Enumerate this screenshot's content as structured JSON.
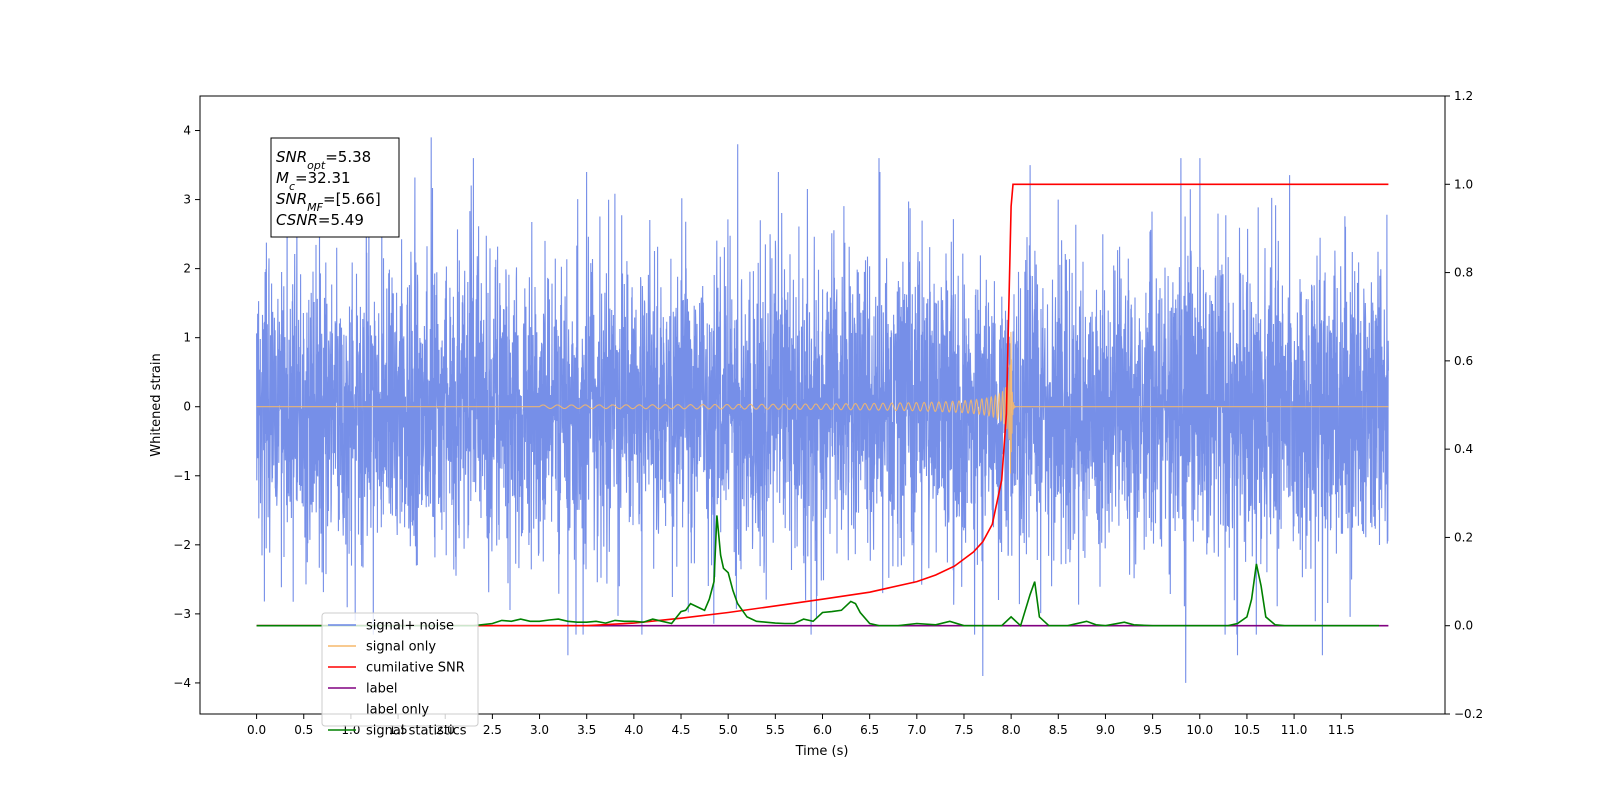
{
  "chart_data": {
    "type": "line",
    "x_axis": {
      "label": "Time (s)",
      "ticks": [
        "0.0",
        "0.5",
        "1.0",
        "1.5",
        "2.0",
        "2.5",
        "3.0",
        "3.5",
        "4.0",
        "4.5",
        "5.0",
        "5.5",
        "6.0",
        "6.5",
        "7.0",
        "7.5",
        "8.0",
        "8.5",
        "9.0",
        "9.5",
        "10.0",
        "10.5",
        "11.0",
        "11.5"
      ],
      "range": [
        -0.6,
        12.6
      ]
    },
    "y_left": {
      "label": "Whitened strain",
      "ticks": [
        -4,
        -3,
        -2,
        -1,
        0,
        1,
        2,
        3,
        4
      ],
      "tick_labels": [
        "−4",
        "−3",
        "−2",
        "−1",
        "0",
        "1",
        "2",
        "3",
        "4"
      ],
      "range": [
        -4.45,
        4.5
      ]
    },
    "y_right": {
      "label": "",
      "ticks": [
        -0.2,
        0.0,
        0.2,
        0.4,
        0.6,
        0.8,
        1.0,
        1.2
      ],
      "tick_labels": [
        "−0.2",
        "0.0",
        "0.2",
        "0.4",
        "0.6",
        "0.8",
        "1.0",
        "1.2"
      ],
      "range": [
        -0.2,
        1.2
      ]
    },
    "annotation": {
      "lines": [
        {
          "base": "SNR",
          "sub": "opt",
          "value": "=5.38"
        },
        {
          "base": "M",
          "sub": "c",
          "value": "=32.31"
        },
        {
          "base": "SNR",
          "sub": "MF",
          "value": "=[5.66]"
        },
        {
          "base": "CSNR",
          "sub": "",
          "value": "=5.49"
        }
      ]
    },
    "legend": {
      "placement": "lower-left",
      "entries": [
        "signal+ noise",
        "signal only",
        "cumilative SNR",
        "label",
        "label only",
        "signal statistics"
      ]
    },
    "colors": {
      "noise": "#6a86e6",
      "signal": "#f5b86c",
      "csnr": "#ff0000",
      "label": "#800080",
      "signal_statistics": "#008000"
    },
    "series": [
      {
        "name": "signal+ noise",
        "axis": "left",
        "kind": "noise",
        "x_range": [
          0.0,
          12.0
        ],
        "typical_amplitude": 2.5,
        "notable_spikes": [
          {
            "x": 1.85,
            "y": 3.9
          },
          {
            "x": 2.3,
            "y": 3.6
          },
          {
            "x": 5.1,
            "y": 3.8
          },
          {
            "x": 6.6,
            "y": 3.6
          },
          {
            "x": 8.2,
            "y": 3.5
          },
          {
            "x": 9.8,
            "y": 3.6
          },
          {
            "x": 10.0,
            "y": 3.6
          },
          {
            "x": 11.3,
            "y": 4.1
          },
          {
            "x": 3.3,
            "y": -3.6
          },
          {
            "x": 7.7,
            "y": -3.9
          },
          {
            "x": 9.85,
            "y": -4.0
          },
          {
            "x": 10.4,
            "y": -3.6
          },
          {
            "x": 11.3,
            "y": -3.6
          }
        ]
      },
      {
        "name": "signal only",
        "axis": "left",
        "kind": "chirp",
        "start": 3.0,
        "merger": 8.0,
        "peak_amplitude": 1.25,
        "end": 12.0
      },
      {
        "name": "cumilative SNR",
        "axis": "right",
        "x": [
          0.0,
          3.5,
          4.0,
          4.5,
          5.0,
          5.5,
          6.0,
          6.5,
          7.0,
          7.2,
          7.4,
          7.6,
          7.7,
          7.8,
          7.9,
          7.95,
          8.0,
          8.02,
          12.0
        ],
        "y": [
          0.0,
          0.0,
          0.006,
          0.017,
          0.03,
          0.045,
          0.06,
          0.076,
          0.1,
          0.115,
          0.135,
          0.167,
          0.19,
          0.23,
          0.33,
          0.48,
          0.95,
          1.0,
          1.0
        ]
      },
      {
        "name": "label",
        "axis": "right",
        "x": [
          0.0,
          12.0
        ],
        "y": [
          0.0,
          0.0
        ]
      },
      {
        "name": "signal statistics",
        "axis": "right",
        "x": [
          0.0,
          2.3,
          2.5,
          2.6,
          2.7,
          2.8,
          2.9,
          3.0,
          3.1,
          3.2,
          3.3,
          3.4,
          3.5,
          3.6,
          3.7,
          3.8,
          3.9,
          4.0,
          4.1,
          4.2,
          4.3,
          4.4,
          4.5,
          4.55,
          4.6,
          4.7,
          4.75,
          4.8,
          4.85,
          4.88,
          4.92,
          4.95,
          5.0,
          5.05,
          5.1,
          5.2,
          5.3,
          5.4,
          5.5,
          5.6,
          5.7,
          5.8,
          5.9,
          6.0,
          6.1,
          6.2,
          6.3,
          6.35,
          6.4,
          6.5,
          6.6,
          6.8,
          7.0,
          7.2,
          7.35,
          7.5,
          7.9,
          8.0,
          8.1,
          8.2,
          8.25,
          8.3,
          8.4,
          8.6,
          8.8,
          8.9,
          9.0,
          9.2,
          9.3,
          9.5,
          10.3,
          10.4,
          10.5,
          10.55,
          10.6,
          10.65,
          10.7,
          10.8,
          10.9,
          11.9
        ],
        "y": [
          0.0,
          0.0,
          0.005,
          0.012,
          0.01,
          0.015,
          0.01,
          0.01,
          0.013,
          0.015,
          0.01,
          0.008,
          0.008,
          0.01,
          0.006,
          0.012,
          0.01,
          0.01,
          0.008,
          0.015,
          0.01,
          0.005,
          0.032,
          0.035,
          0.05,
          0.04,
          0.035,
          0.06,
          0.1,
          0.25,
          0.16,
          0.13,
          0.12,
          0.08,
          0.05,
          0.02,
          0.01,
          0.008,
          0.006,
          0.005,
          0.005,
          0.015,
          0.01,
          0.03,
          0.032,
          0.035,
          0.055,
          0.05,
          0.03,
          0.005,
          0.0,
          0.0,
          0.005,
          0.002,
          0.01,
          0.0,
          0.0,
          0.02,
          0.0,
          0.07,
          0.1,
          0.02,
          0.0,
          0.0,
          0.01,
          0.002,
          0.0,
          0.008,
          0.002,
          0.0,
          0.0,
          0.005,
          0.02,
          0.06,
          0.14,
          0.09,
          0.02,
          0.002,
          0.0,
          0.0
        ]
      }
    ]
  }
}
